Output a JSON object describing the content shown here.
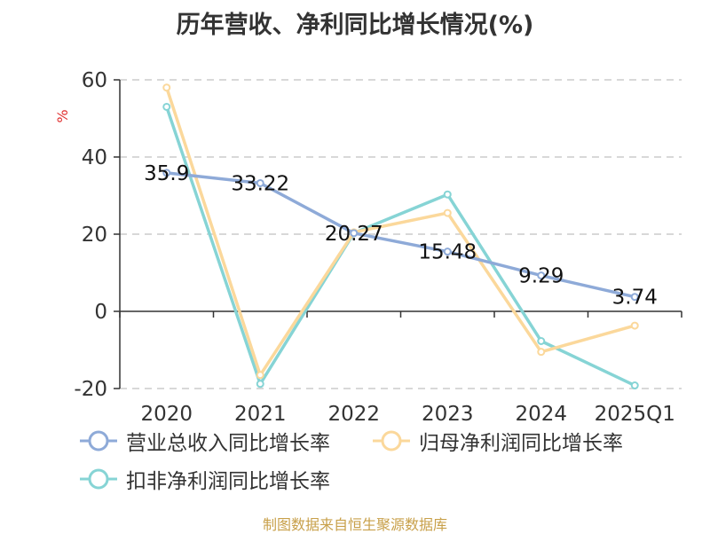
{
  "title": "历年营收、净利同比增长情况(%)",
  "source": "制图数据来自恒生聚源数据库",
  "colors": {
    "series1": "#8eaad8",
    "series2": "#fbd89b",
    "series3": "#86d4d5",
    "grid": "#cccccc",
    "axis": "#333333",
    "unit": "#e03030"
  },
  "chart_data": {
    "type": "line",
    "categories": [
      "2020",
      "2021",
      "2022",
      "2023",
      "2024",
      "2025Q1"
    ],
    "y_unit": "%",
    "ylim": [
      -20,
      60
    ],
    "yticks": [
      60,
      40,
      20,
      0,
      -20
    ],
    "ytick_labels": [
      "60",
      "40",
      "20",
      "0",
      "-20"
    ],
    "grid": true,
    "legend_position": "bottom",
    "series": [
      {
        "name": "营业总收入同比增长率",
        "values": [
          35.9,
          33.22,
          20.27,
          15.48,
          9.29,
          3.74
        ],
        "data_labels": [
          "35.9",
          "33.22",
          "20.27",
          "15.48",
          "9.29",
          "3.74"
        ]
      },
      {
        "name": "归母净利润同比增长率",
        "values": [
          58.0,
          -16.5,
          20.5,
          25.5,
          -10.5,
          -3.7
        ]
      },
      {
        "name": "扣非净利润同比增长率",
        "values": [
          53.0,
          -18.8,
          20.3,
          30.3,
          -7.7,
          -19.2
        ]
      }
    ]
  }
}
